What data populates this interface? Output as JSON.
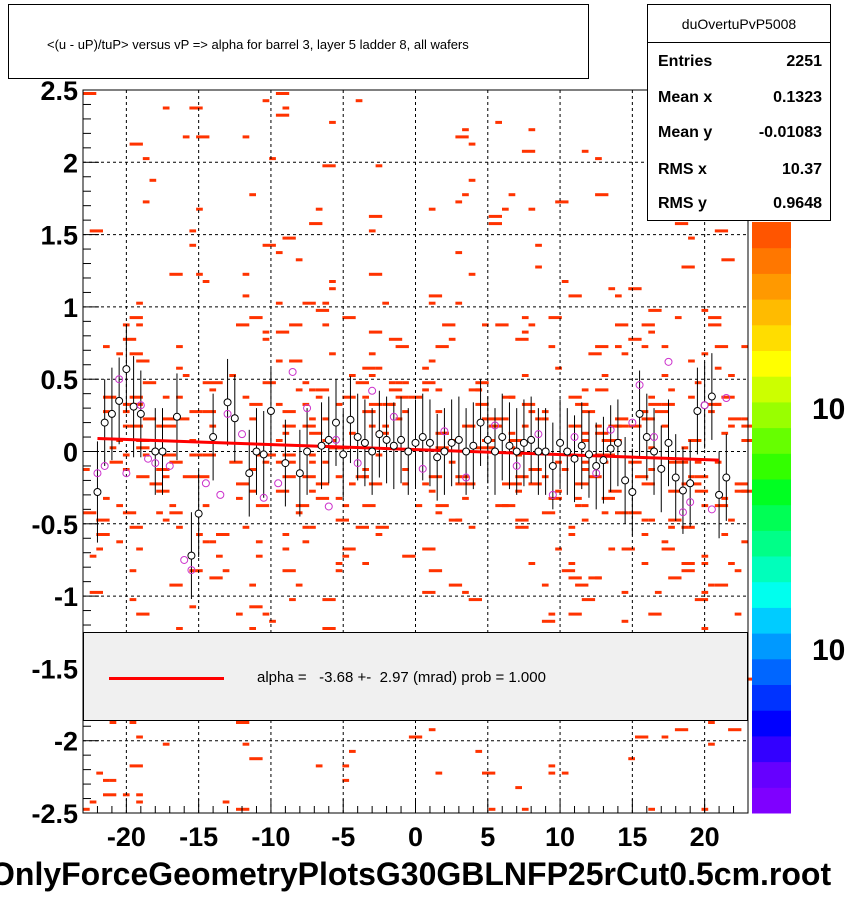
{
  "title": "<(u - uP)/tuP> versus   vP => alpha for barrel 3, layer 5 ladder 8, all wafers",
  "stats": {
    "name": "duOvertuPvP5008",
    "rows": [
      {
        "key": "Entries",
        "value": "2251"
      },
      {
        "key": "Mean x",
        "value": "0.1323"
      },
      {
        "key": "Mean y",
        "value": "-0.01083"
      },
      {
        "key": "RMS x",
        "value": "10.37"
      },
      {
        "key": "RMS y",
        "value": "0.9648"
      }
    ]
  },
  "legend": {
    "text": "alpha =   -3.68 +-  2.97 (mrad) prob = 1.000",
    "line_color": "#ff0000"
  },
  "bottom_label": "OnlyForceGeometryPlotsG30GBLNFP25rCut0.5cm.root",
  "z_axis_labels": [
    "10",
    "10"
  ],
  "colors": {
    "histogram_bins": "#ff3300",
    "fit_line": "#ff0000",
    "profile_markers": "#000000",
    "alt_markers": "#cc33cc",
    "palette": [
      "#7f00ff",
      "#6600ff",
      "#3300ff",
      "#0000ff",
      "#0033ff",
      "#0066ff",
      "#0099ff",
      "#00ccff",
      "#00ffee",
      "#00ffbb",
      "#00ff88",
      "#00ff55",
      "#00ff22",
      "#33ff00",
      "#66ff00",
      "#99ff00",
      "#ccff00",
      "#ffff00",
      "#ffdd00",
      "#ffbb00",
      "#ff9900",
      "#ff7700",
      "#ff5500"
    ]
  },
  "chart_data": {
    "type": "scatter",
    "title": "<(u - uP)/tuP> versus   vP => alpha for barrel 3, layer 5 ladder 8, all wafers",
    "xlim": [
      -23,
      23
    ],
    "ylim": [
      -2.5,
      2.5
    ],
    "x_ticks": [
      -20,
      -15,
      -10,
      -5,
      0,
      5,
      10,
      15,
      20
    ],
    "x_tick_labels": [
      "-20",
      "-15",
      "-10",
      "-5",
      "0",
      "5",
      "10",
      "15",
      "20"
    ],
    "y_ticks": [
      -2.5,
      -2,
      -1.5,
      -1,
      -0.5,
      0,
      0.5,
      1,
      1.5,
      2,
      2.5
    ],
    "y_tick_labels": [
      "-2.5",
      "-2",
      "-1.5",
      "-1",
      "-0.5",
      "0",
      "0.5",
      "1",
      "1.5",
      "2",
      "2.5"
    ],
    "grid": true,
    "fit": {
      "x": [
        -22,
        21
      ],
      "y": [
        0.09,
        -0.06
      ]
    },
    "profile": [
      {
        "x": -22.0,
        "y": -0.28,
        "err": 0.35
      },
      {
        "x": -21.5,
        "y": 0.2,
        "err": 0.3
      },
      {
        "x": -21.0,
        "y": 0.26,
        "err": 0.32
      },
      {
        "x": -20.5,
        "y": 0.35,
        "err": 0.3
      },
      {
        "x": -20.0,
        "y": 0.57,
        "err": 0.3
      },
      {
        "x": -19.5,
        "y": 0.31,
        "err": 0.35
      },
      {
        "x": -19.0,
        "y": 0.26,
        "err": 0.3
      },
      {
        "x": -18.0,
        "y": 0.0,
        "err": 0.3
      },
      {
        "x": -17.5,
        "y": 0.0,
        "err": 0.3
      },
      {
        "x": -16.5,
        "y": 0.24,
        "err": 0.3
      },
      {
        "x": -15.5,
        "y": -0.72,
        "err": 0.3
      },
      {
        "x": -15.0,
        "y": -0.43,
        "err": 0.3
      },
      {
        "x": -14.0,
        "y": 0.1,
        "err": 0.3
      },
      {
        "x": -13.0,
        "y": 0.34,
        "err": 0.3
      },
      {
        "x": -12.5,
        "y": 0.23,
        "err": 0.3
      },
      {
        "x": -11.5,
        "y": -0.15,
        "err": 0.3
      },
      {
        "x": -11.0,
        "y": 0.0,
        "err": 0.3
      },
      {
        "x": -10.5,
        "y": -0.02,
        "err": 0.3
      },
      {
        "x": -10.0,
        "y": 0.28,
        "err": 0.3
      },
      {
        "x": -9.0,
        "y": -0.08,
        "err": 0.3
      },
      {
        "x": -8.0,
        "y": -0.15,
        "err": 0.3
      },
      {
        "x": -7.5,
        "y": 0.0,
        "err": 0.3
      },
      {
        "x": -6.5,
        "y": 0.04,
        "err": 0.3
      },
      {
        "x": -6.0,
        "y": 0.08,
        "err": 0.3
      },
      {
        "x": -5.5,
        "y": 0.2,
        "err": 0.3
      },
      {
        "x": -5.0,
        "y": -0.02,
        "err": 0.3
      },
      {
        "x": -4.5,
        "y": 0.22,
        "err": 0.3
      },
      {
        "x": -4.0,
        "y": 0.1,
        "err": 0.3
      },
      {
        "x": -3.5,
        "y": 0.06,
        "err": 0.3
      },
      {
        "x": -3.0,
        "y": 0.0,
        "err": 0.3
      },
      {
        "x": -2.5,
        "y": 0.12,
        "err": 0.3
      },
      {
        "x": -2.0,
        "y": 0.08,
        "err": 0.3
      },
      {
        "x": -1.5,
        "y": 0.04,
        "err": 0.3
      },
      {
        "x": -1.0,
        "y": 0.08,
        "err": 0.3
      },
      {
        "x": -0.5,
        "y": 0.0,
        "err": 0.3
      },
      {
        "x": 0.0,
        "y": 0.06,
        "err": 0.3
      },
      {
        "x": 0.5,
        "y": 0.1,
        "err": 0.3
      },
      {
        "x": 1.0,
        "y": 0.06,
        "err": 0.3
      },
      {
        "x": 1.5,
        "y": -0.04,
        "err": 0.3
      },
      {
        "x": 2.0,
        "y": 0.0,
        "err": 0.3
      },
      {
        "x": 2.5,
        "y": 0.06,
        "err": 0.3
      },
      {
        "x": 3.0,
        "y": 0.08,
        "err": 0.3
      },
      {
        "x": 3.5,
        "y": 0.0,
        "err": 0.3
      },
      {
        "x": 4.0,
        "y": 0.04,
        "err": 0.3
      },
      {
        "x": 4.5,
        "y": 0.2,
        "err": 0.3
      },
      {
        "x": 5.0,
        "y": 0.08,
        "err": 0.3
      },
      {
        "x": 5.5,
        "y": 0.0,
        "err": 0.3
      },
      {
        "x": 6.0,
        "y": 0.1,
        "err": 0.3
      },
      {
        "x": 6.5,
        "y": 0.04,
        "err": 0.3
      },
      {
        "x": 7.0,
        "y": 0.0,
        "err": 0.3
      },
      {
        "x": 7.5,
        "y": 0.06,
        "err": 0.3
      },
      {
        "x": 8.0,
        "y": 0.08,
        "err": 0.3
      },
      {
        "x": 8.5,
        "y": 0.0,
        "err": 0.3
      },
      {
        "x": 9.0,
        "y": 0.0,
        "err": 0.3
      },
      {
        "x": 9.5,
        "y": -0.1,
        "err": 0.3
      },
      {
        "x": 10.0,
        "y": 0.06,
        "err": 0.3
      },
      {
        "x": 10.5,
        "y": 0.0,
        "err": 0.3
      },
      {
        "x": 11.0,
        "y": -0.05,
        "err": 0.3
      },
      {
        "x": 11.5,
        "y": 0.04,
        "err": 0.3
      },
      {
        "x": 12.0,
        "y": -0.02,
        "err": 0.3
      },
      {
        "x": 12.5,
        "y": -0.1,
        "err": 0.3
      },
      {
        "x": 13.0,
        "y": -0.06,
        "err": 0.3
      },
      {
        "x": 13.5,
        "y": 0.02,
        "err": 0.3
      },
      {
        "x": 14.0,
        "y": 0.06,
        "err": 0.3
      },
      {
        "x": 14.5,
        "y": -0.2,
        "err": 0.3
      },
      {
        "x": 15.0,
        "y": -0.28,
        "err": 0.3
      },
      {
        "x": 15.5,
        "y": 0.26,
        "err": 0.3
      },
      {
        "x": 16.0,
        "y": 0.1,
        "err": 0.3
      },
      {
        "x": 16.5,
        "y": 0.0,
        "err": 0.3
      },
      {
        "x": 17.0,
        "y": -0.12,
        "err": 0.3
      },
      {
        "x": 17.5,
        "y": 0.06,
        "err": 0.3
      },
      {
        "x": 18.0,
        "y": -0.18,
        "err": 0.3
      },
      {
        "x": 18.5,
        "y": -0.27,
        "err": 0.3
      },
      {
        "x": 19.0,
        "y": -0.22,
        "err": 0.3
      },
      {
        "x": 19.5,
        "y": 0.28,
        "err": 0.3
      },
      {
        "x": 20.0,
        "y": 0.32,
        "err": 0.3
      },
      {
        "x": 20.5,
        "y": 0.38,
        "err": 0.3
      },
      {
        "x": 21.0,
        "y": -0.3,
        "err": 0.3
      },
      {
        "x": 21.5,
        "y": -0.18,
        "err": 0.3
      }
    ],
    "alt_points": [
      {
        "x": -22.0,
        "y": -0.15
      },
      {
        "x": -21.5,
        "y": -0.1
      },
      {
        "x": -20.5,
        "y": 0.5
      },
      {
        "x": -20.0,
        "y": -0.15
      },
      {
        "x": -19.0,
        "y": 0.32
      },
      {
        "x": -18.5,
        "y": -0.05
      },
      {
        "x": -18.0,
        "y": -0.08
      },
      {
        "x": -17.0,
        "y": -0.1
      },
      {
        "x": -16.0,
        "y": -0.75
      },
      {
        "x": -15.5,
        "y": -0.82
      },
      {
        "x": -14.5,
        "y": -0.22
      },
      {
        "x": -13.5,
        "y": -0.3
      },
      {
        "x": -13.0,
        "y": 0.26
      },
      {
        "x": -12.0,
        "y": 0.12
      },
      {
        "x": -10.5,
        "y": -0.32
      },
      {
        "x": -9.5,
        "y": -0.22
      },
      {
        "x": -8.5,
        "y": 0.55
      },
      {
        "x": -7.5,
        "y": 0.3
      },
      {
        "x": -6.0,
        "y": -0.38
      },
      {
        "x": -5.5,
        "y": 0.08
      },
      {
        "x": -4.0,
        "y": -0.08
      },
      {
        "x": -3.0,
        "y": 0.42
      },
      {
        "x": -1.5,
        "y": 0.24
      },
      {
        "x": 0.5,
        "y": -0.12
      },
      {
        "x": 2.0,
        "y": 0.14
      },
      {
        "x": 3.5,
        "y": -0.18
      },
      {
        "x": 5.5,
        "y": 0.18
      },
      {
        "x": 7.0,
        "y": -0.1
      },
      {
        "x": 8.5,
        "y": 0.12
      },
      {
        "x": 9.5,
        "y": -0.3
      },
      {
        "x": 11.0,
        "y": 0.1
      },
      {
        "x": 12.5,
        "y": -0.15
      },
      {
        "x": 13.5,
        "y": 0.15
      },
      {
        "x": 15.0,
        "y": 0.2
      },
      {
        "x": 15.5,
        "y": 0.46
      },
      {
        "x": 16.5,
        "y": 0.1
      },
      {
        "x": 17.5,
        "y": 0.62
      },
      {
        "x": 18.5,
        "y": -0.42
      },
      {
        "x": 19.0,
        "y": -0.35
      },
      {
        "x": 20.0,
        "y": 0.32
      },
      {
        "x": 20.5,
        "y": -0.4
      },
      {
        "x": 21.5,
        "y": 0.37
      }
    ]
  }
}
